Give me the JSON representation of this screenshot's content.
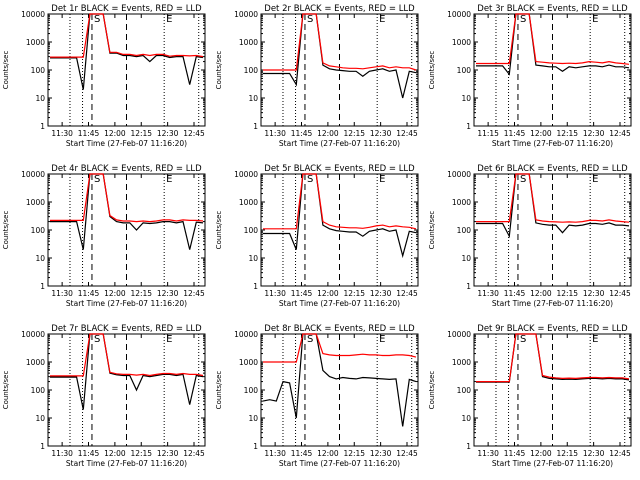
{
  "chart_data": [
    {
      "type": "line",
      "title": "Det 1r  BLACK = Events, RED = LLD",
      "ylabel": "Counts/sec",
      "xlabel": "Start Time (27-Feb-07 11:16:20)",
      "x_ticks": [
        "11:30",
        "11:45",
        "12:00",
        "12:15",
        "12:30",
        "12:45"
      ],
      "y_ticks": [
        "1",
        "10",
        "100",
        "1000",
        "10000"
      ],
      "ylim": [
        1,
        10000
      ],
      "scale": "log",
      "markers": [
        "S",
        "E"
      ],
      "series": [
        {
          "color": "#000000",
          "values": [
            270,
            270,
            270,
            270,
            270,
            20,
            10000,
            10000,
            10000,
            400,
            400,
            330,
            330,
            300,
            330,
            200,
            330,
            330,
            280,
            300,
            300,
            30,
            300,
            280
          ]
        },
        {
          "color": "#ff0000",
          "values": [
            290,
            290,
            290,
            290,
            290,
            290,
            10000,
            10000,
            10000,
            430,
            430,
            360,
            360,
            330,
            360,
            330,
            360,
            360,
            310,
            330,
            330,
            320,
            330,
            300
          ]
        }
      ]
    },
    {
      "type": "line",
      "title": "Det 2r  BLACK = Events, RED = LLD",
      "ylabel": "Counts/sec",
      "xlabel": "Start Time (27-Feb-07 11:16:20)",
      "x_ticks": [
        "11:30",
        "11:45",
        "12:00",
        "12:15",
        "12:30",
        "12:45"
      ],
      "y_ticks": [
        "1",
        "10",
        "100",
        "1000",
        "10000"
      ],
      "ylim": [
        1,
        10000
      ],
      "scale": "log",
      "markers": [
        "S",
        "E"
      ],
      "series": [
        {
          "color": "#000000",
          "values": [
            75,
            75,
            75,
            75,
            75,
            30,
            10000,
            10000,
            10000,
            150,
            110,
            100,
            95,
            90,
            90,
            60,
            90,
            100,
            110,
            90,
            100,
            10,
            90,
            80
          ]
        },
        {
          "color": "#ff0000",
          "values": [
            100,
            100,
            100,
            100,
            100,
            100,
            10000,
            10000,
            10000,
            180,
            140,
            130,
            120,
            115,
            115,
            110,
            120,
            130,
            140,
            120,
            130,
            120,
            120,
            100
          ]
        }
      ]
    },
    {
      "type": "line",
      "title": "Det 3r  BLACK = Events, RED = LLD",
      "ylabel": "Counts/sec",
      "xlabel": "Start Time (27-Feb-07 11:16:20)",
      "x_ticks": [
        "11:15",
        "11:45",
        "12:00",
        "12:15",
        "12:30",
        "12:45"
      ],
      "y_ticks": [
        "1",
        "10",
        "100",
        "1000",
        "10000"
      ],
      "ylim": [
        1,
        10000
      ],
      "scale": "log",
      "markers": [
        "S",
        "E"
      ],
      "series": [
        {
          "color": "#000000",
          "values": [
            140,
            140,
            140,
            140,
            140,
            70,
            10000,
            10000,
            10000,
            150,
            140,
            130,
            130,
            90,
            130,
            120,
            130,
            140,
            140,
            130,
            150,
            130,
            130,
            120
          ]
        },
        {
          "color": "#ff0000",
          "values": [
            170,
            170,
            170,
            170,
            170,
            170,
            10000,
            10000,
            10000,
            200,
            190,
            180,
            175,
            170,
            175,
            170,
            180,
            200,
            190,
            180,
            200,
            180,
            170,
            160
          ]
        }
      ]
    },
    {
      "type": "line",
      "title": "Det 4r  BLACK = Events, RED = LLD",
      "ylabel": "Counts/sec",
      "xlabel": "Start Time (27-Feb-07 11:16:20)",
      "x_ticks": [
        "11:30",
        "11:45",
        "12:00",
        "12:15",
        "12:30",
        "12:45"
      ],
      "y_ticks": [
        "1",
        "10",
        "100",
        "1000",
        "10000"
      ],
      "ylim": [
        1,
        10000
      ],
      "scale": "log",
      "markers": [
        "S",
        "E"
      ],
      "series": [
        {
          "color": "#000000",
          "values": [
            200,
            200,
            200,
            200,
            200,
            20,
            10000,
            10000,
            10000,
            300,
            200,
            180,
            180,
            100,
            180,
            170,
            180,
            200,
            200,
            180,
            200,
            20,
            190,
            180
          ]
        },
        {
          "color": "#ff0000",
          "values": [
            220,
            220,
            220,
            220,
            220,
            220,
            10000,
            10000,
            10000,
            330,
            230,
            210,
            210,
            200,
            210,
            200,
            210,
            230,
            230,
            210,
            230,
            220,
            220,
            210
          ]
        }
      ]
    },
    {
      "type": "line",
      "title": "Det 5r  BLACK = Events, RED = LLD",
      "ylabel": "Counts/sec",
      "xlabel": "Start Time (27-Feb-07 11:16:20)",
      "x_ticks": [
        "11:30",
        "11:45",
        "12:00",
        "12:15",
        "12:30",
        "12:45"
      ],
      "y_ticks": [
        "1",
        "10",
        "100",
        "1000",
        "10000"
      ],
      "ylim": [
        1,
        10000
      ],
      "scale": "log",
      "markers": [
        "S",
        "E"
      ],
      "series": [
        {
          "color": "#000000",
          "values": [
            75,
            75,
            75,
            75,
            75,
            20,
            10000,
            10000,
            10000,
            150,
            110,
            95,
            90,
            85,
            85,
            60,
            90,
            100,
            110,
            90,
            100,
            12,
            90,
            80
          ]
        },
        {
          "color": "#ff0000",
          "values": [
            110,
            110,
            110,
            110,
            110,
            110,
            10000,
            10000,
            10000,
            200,
            150,
            130,
            125,
            120,
            120,
            115,
            125,
            140,
            150,
            130,
            140,
            130,
            125,
            110
          ]
        }
      ]
    },
    {
      "type": "line",
      "title": "Det 6r  BLACK = Events, RED = LLD",
      "ylabel": "Counts/sec",
      "xlabel": "Start Time (27-Feb-07 11:16:20)",
      "x_ticks": [
        "11:30",
        "11:45",
        "12:00",
        "12:15",
        "12:30",
        "12:45"
      ],
      "y_ticks": [
        "1",
        "10",
        "100",
        "1000",
        "10000"
      ],
      "ylim": [
        1,
        10000
      ],
      "scale": "log",
      "markers": [
        "S",
        "E"
      ],
      "series": [
        {
          "color": "#000000",
          "values": [
            170,
            170,
            170,
            170,
            170,
            60,
            10000,
            10000,
            10000,
            180,
            160,
            150,
            150,
            80,
            150,
            140,
            150,
            170,
            170,
            160,
            180,
            150,
            150,
            140
          ]
        },
        {
          "color": "#ff0000",
          "values": [
            200,
            200,
            200,
            200,
            200,
            200,
            10000,
            10000,
            10000,
            230,
            210,
            200,
            195,
            190,
            195,
            190,
            200,
            220,
            220,
            210,
            230,
            210,
            200,
            190
          ]
        }
      ]
    },
    {
      "type": "line",
      "title": "Det 7r  BLACK = Events, RED = LLD",
      "ylabel": "Counts/sec",
      "xlabel": "Start Time (27-Feb-07 11:16:20)",
      "x_ticks": [
        "11:30",
        "11:45",
        "12:00",
        "12:15",
        "12:30",
        "12:45"
      ],
      "y_ticks": [
        "1",
        "10",
        "100",
        "1000",
        "10000"
      ],
      "ylim": [
        1,
        10000
      ],
      "scale": "log",
      "markers": [
        "S",
        "E"
      ],
      "series": [
        {
          "color": "#000000",
          "values": [
            290,
            290,
            290,
            290,
            290,
            20,
            10000,
            10000,
            10000,
            400,
            350,
            330,
            330,
            100,
            330,
            300,
            330,
            360,
            360,
            330,
            360,
            30,
            330,
            300
          ]
        },
        {
          "color": "#ff0000",
          "values": [
            320,
            320,
            320,
            320,
            320,
            320,
            10000,
            10000,
            10000,
            430,
            380,
            360,
            360,
            340,
            360,
            330,
            360,
            390,
            390,
            360,
            390,
            360,
            360,
            330
          ]
        }
      ]
    },
    {
      "type": "line",
      "title": "Det 8r  BLACK = Events, RED = LLD",
      "ylabel": "Counts/sec",
      "xlabel": "Start Time (27-Feb-07 11:16:20)",
      "x_ticks": [
        "11:30",
        "11:45",
        "12:00",
        "12:15",
        "12:30",
        "12:45"
      ],
      "y_ticks": [
        "1",
        "10",
        "100",
        "1000",
        "10000"
      ],
      "ylim": [
        1,
        10000
      ],
      "scale": "log",
      "markers": [
        "S",
        "E"
      ],
      "series": [
        {
          "color": "#000000",
          "values": [
            40,
            45,
            40,
            200,
            180,
            10,
            10000,
            10000,
            10000,
            500,
            300,
            250,
            280,
            260,
            250,
            280,
            270,
            260,
            250,
            240,
            250,
            5,
            240,
            200
          ]
        },
        {
          "color": "#ff0000",
          "values": [
            1000,
            1000,
            1000,
            1000,
            1000,
            1000,
            10000,
            10000,
            10000,
            2000,
            1800,
            1700,
            1700,
            1700,
            1800,
            1900,
            1800,
            1800,
            1700,
            1700,
            1800,
            1800,
            1700,
            1500
          ]
        }
      ]
    },
    {
      "type": "line",
      "title": "Det 9r  BLACK = Events, RED = LLD",
      "ylabel": "Counts/sec",
      "xlabel": "Start Time (27-Feb-07 11:16:20)",
      "x_ticks": [
        "11:30",
        "11:45",
        "12:00",
        "12:15",
        "12:30",
        "12:45"
      ],
      "y_ticks": [
        "1",
        "10",
        "100",
        "1000",
        "10000"
      ],
      "ylim": [
        1,
        10000
      ],
      "scale": "log",
      "markers": [
        "S",
        "E"
      ],
      "series": [
        {
          "color": "#000000",
          "values": [
            190,
            190,
            190,
            190,
            190,
            190,
            10000,
            10000,
            10000,
            10000,
            300,
            260,
            250,
            240,
            245,
            240,
            250,
            260,
            260,
            250,
            260,
            250,
            250,
            230
          ]
        },
        {
          "color": "#ff0000",
          "values": [
            200,
            200,
            200,
            200,
            200,
            200,
            10000,
            10000,
            10000,
            10000,
            330,
            290,
            270,
            260,
            265,
            260,
            270,
            280,
            280,
            270,
            280,
            270,
            270,
            250
          ]
        }
      ]
    }
  ]
}
